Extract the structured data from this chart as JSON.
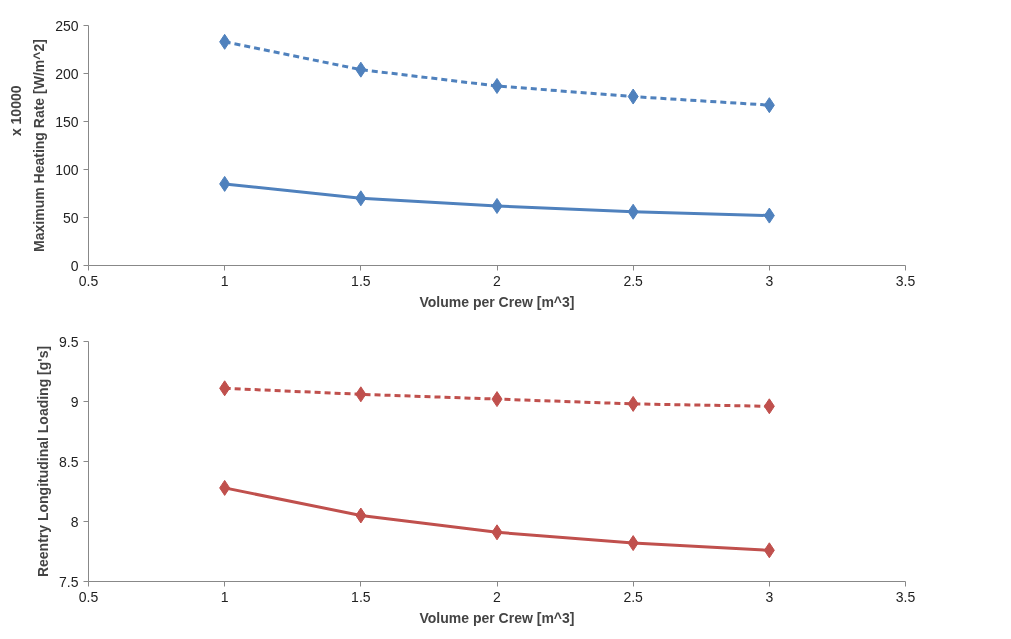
{
  "chart_data": [
    {
      "type": "line",
      "xlabel": "Volume per Crew [m^3]",
      "ylabel": "Maximum Heating Rate [W/m^2]",
      "annotations": [
        "x 10000"
      ],
      "x": [
        1,
        1.5,
        2,
        2.5,
        3
      ],
      "xlim": [
        0.5,
        3.5
      ],
      "xticks": [
        0.5,
        1,
        1.5,
        2,
        2.5,
        3,
        3.5
      ],
      "ylim": [
        0,
        250
      ],
      "yticks": [
        0,
        50,
        100,
        150,
        200,
        250
      ],
      "grid": false,
      "marker": "diamond",
      "series": [
        {
          "color": "#4f81bd",
          "line_style": "dashed",
          "values": [
            233,
            204,
            187,
            176,
            167
          ]
        },
        {
          "color": "#4f81bd",
          "line_style": "solid",
          "values": [
            85,
            70,
            62,
            56,
            52
          ]
        }
      ]
    },
    {
      "type": "line",
      "xlabel": "Volume per Crew [m^3]",
      "ylabel": "Reentry Longitudinal Loading [g's]",
      "x": [
        1,
        1.5,
        2,
        2.5,
        3
      ],
      "xlim": [
        0.5,
        3.5
      ],
      "xticks": [
        0.5,
        1,
        1.5,
        2,
        2.5,
        3,
        3.5
      ],
      "ylim": [
        7.5,
        9.5
      ],
      "yticks": [
        7.5,
        8,
        8.5,
        9,
        9.5
      ],
      "grid": false,
      "marker": "diamond",
      "series": [
        {
          "color": "#c0504d",
          "line_style": "dashed",
          "values": [
            9.11,
            9.06,
            9.02,
            8.98,
            8.96
          ]
        },
        {
          "color": "#c0504d",
          "line_style": "solid",
          "values": [
            8.28,
            8.05,
            7.91,
            7.82,
            7.76
          ]
        }
      ]
    }
  ]
}
